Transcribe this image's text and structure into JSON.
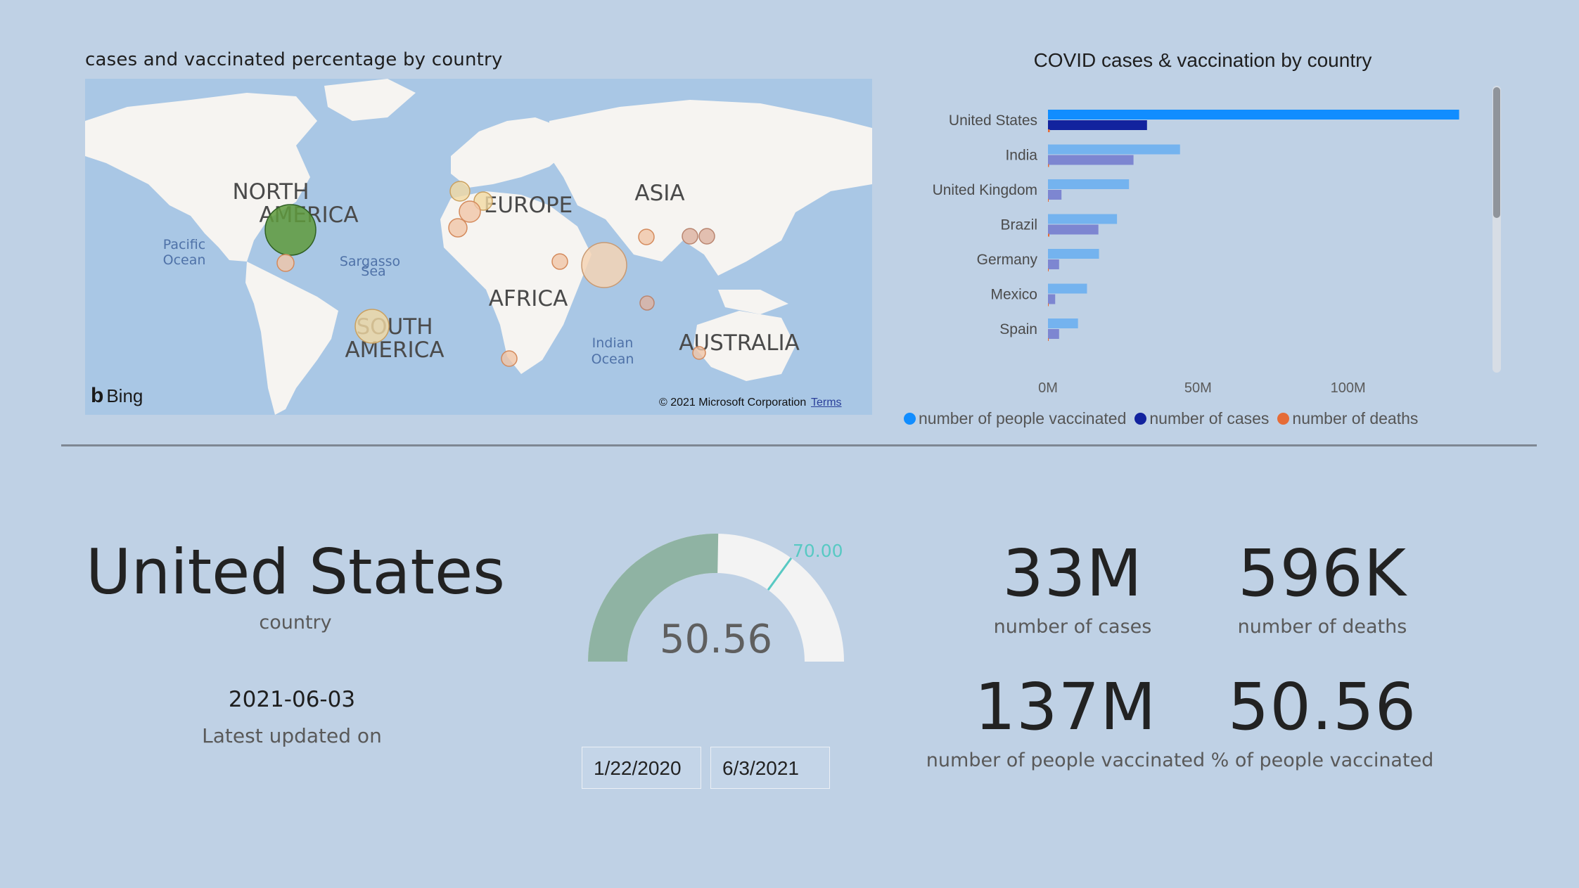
{
  "map": {
    "title": "cases and vaccinated percentage by country",
    "regions": [
      "NORTH",
      "AMERICA",
      "EUROPE",
      "ASIA",
      "AFRICA",
      "SOUTH",
      "AMERICA",
      "AUSTRALIA"
    ],
    "oceans": [
      "Pacific",
      "Ocean",
      "Sargasso",
      "Sea",
      "Indian",
      "Ocean"
    ],
    "logo": "Bing",
    "copyright": "© 2021 Microsoft Corporation",
    "terms": "Terms"
  },
  "chart_data": {
    "type": "bar",
    "title": "COVID cases & vaccination by country",
    "categories": [
      "United States",
      "India",
      "United Kingdom",
      "Brazil",
      "Germany",
      "Mexico",
      "Spain"
    ],
    "series": [
      {
        "name": "number of people vaccinated",
        "color": "#118dff",
        "values": [
          137,
          44,
          27,
          23,
          17,
          13,
          10
        ]
      },
      {
        "name": "number of cases",
        "color": "#12239e",
        "values": [
          33,
          28.5,
          4.5,
          16.8,
          3.7,
          2.4,
          3.7
        ]
      },
      {
        "name": "number of deaths",
        "color": "#e66c37",
        "values": [
          0.596,
          0.34,
          0.128,
          0.47,
          0.089,
          0.23,
          0.08
        ]
      }
    ],
    "xticks": [
      "0M",
      "50M",
      "100M"
    ],
    "xlim": [
      0,
      150
    ],
    "legend_position": "bottom"
  },
  "cards": {
    "country": "United States",
    "country_label": "country",
    "date": "2021-06-03",
    "date_label": "Latest updated on",
    "gauge_value": "50.56",
    "gauge_target": "70.00",
    "gauge_fraction": 0.5056,
    "gauge_target_fraction": 0.7,
    "date_start": "1/22/2020",
    "date_end": "6/3/2021",
    "cases": "33M",
    "cases_label": "number of cases",
    "deaths": "596K",
    "deaths_label": "number of deaths",
    "vaccinated": "137M",
    "vaccinated_label": "number of people vaccinated",
    "pct": "50.56",
    "pct_label": "% of people vaccinated"
  }
}
